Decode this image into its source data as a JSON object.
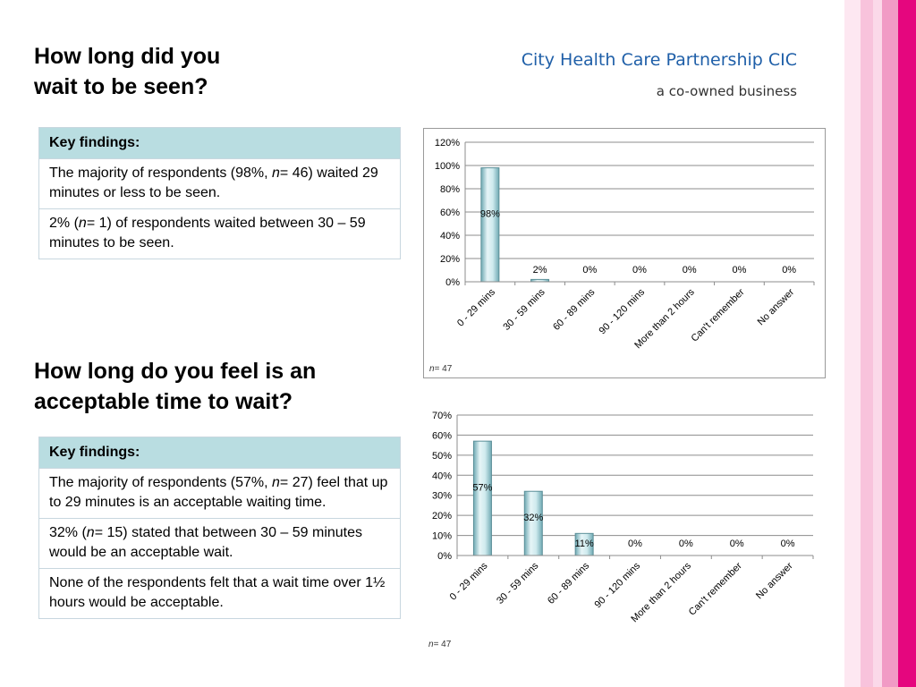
{
  "brand": {
    "name": "City Health Care Partnership CIC",
    "tagline": "a co-owned business"
  },
  "section1": {
    "title_line1": "How long did you",
    "title_line2": "wait to be seen?",
    "findings_header": "Key findings:",
    "findings": [
      [
        "The majority of respondents (98%, ",
        "n",
        "= 46) waited 29 minutes or less to be seen."
      ],
      [
        "2% (",
        "n",
        "= 1) of respondents waited between 30 – 59 minutes to be seen."
      ]
    ]
  },
  "section2": {
    "title_line1": "How long do you feel is an",
    "title_line2": "acceptable time to wait?",
    "findings_header": "Key findings:",
    "findings": [
      [
        "The majority of respondents (57%, ",
        "n",
        "= 27) feel that up to 29 minutes is an acceptable waiting time."
      ],
      [
        "32% (",
        "n",
        "= 15) stated that between 30 – 59 minutes would be an acceptable wait."
      ],
      [
        "None of the respondents felt that a wait time over 1½ hours would be acceptable.",
        "",
        ""
      ]
    ]
  },
  "chart_data": [
    {
      "type": "bar",
      "categories": [
        "0 - 29 mins",
        "30 - 59 mins",
        "60 - 89 mins",
        "90 - 120 mins",
        "More than 2 hours",
        "Can't remember",
        "No answer"
      ],
      "values": [
        98,
        2,
        0,
        0,
        0,
        0,
        0
      ],
      "data_labels": [
        "98%",
        "2%",
        "0%",
        "0%",
        "0%",
        "0%",
        "0%"
      ],
      "ylim": [
        0,
        120
      ],
      "yticks": [
        "0%",
        "20%",
        "40%",
        "60%",
        "80%",
        "100%",
        "120%"
      ],
      "ytick_values": [
        0,
        20,
        40,
        60,
        80,
        100,
        120
      ],
      "grid": true,
      "legend": "none",
      "note_n": "n",
      "note_value": "= 47",
      "bar_color": "#a9d4da"
    },
    {
      "type": "bar",
      "categories": [
        "0 - 29 mins",
        "30 - 59 mins",
        "60 - 89 mins",
        "90 - 120 mins",
        "More than 2 hours",
        "Can't remember",
        "No answer"
      ],
      "values": [
        57,
        32,
        11,
        0,
        0,
        0,
        0
      ],
      "data_labels": [
        "57%",
        "32%",
        "11%",
        "0%",
        "0%",
        "0%",
        "0%"
      ],
      "ylim": [
        0,
        70
      ],
      "yticks": [
        "0%",
        "10%",
        "20%",
        "30%",
        "40%",
        "50%",
        "60%",
        "70%"
      ],
      "ytick_values": [
        0,
        10,
        20,
        30,
        40,
        50,
        60,
        70
      ],
      "grid": true,
      "legend": "none",
      "note_n": "n",
      "note_value": "= 47",
      "bar_color": "#a9d4da"
    }
  ],
  "colors": {
    "accent_blue": "#1f5fa8",
    "table_header": "#b9dde1",
    "stripe_pink_light": "#f7c6dd",
    "stripe_pink_mid": "#ef8ebd",
    "stripe_magenta": "#e5067e"
  }
}
